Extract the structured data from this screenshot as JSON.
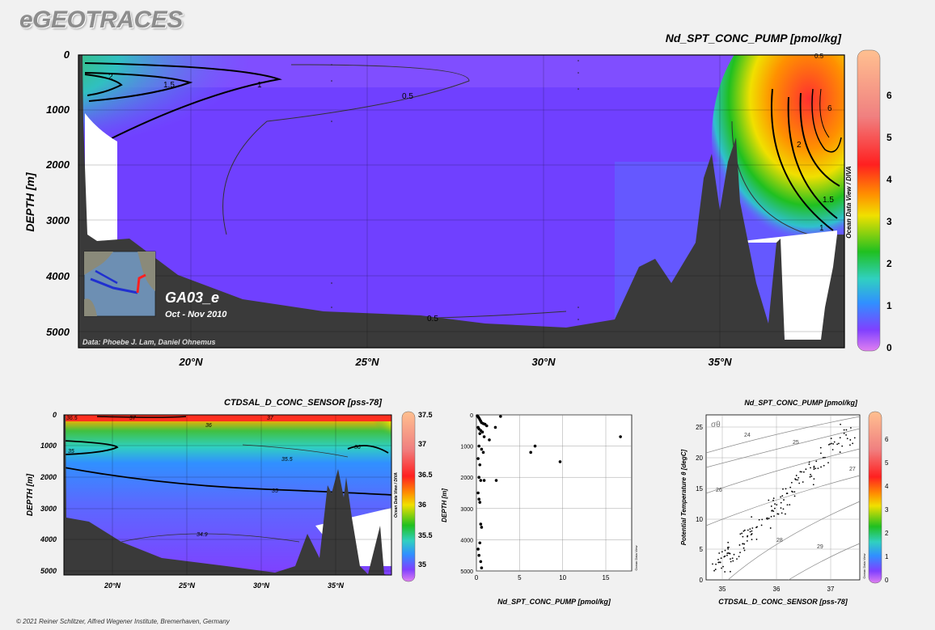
{
  "brand": "eGEOTRACES",
  "credit": "© 2021 Reiner Schlitzer, Alfred Wegener Institute, Bremerhaven, Germany",
  "colors": {
    "land": "#3a3a3a",
    "background": "#f1f1f1",
    "nd_scale": [
      "#e080f0",
      "#8040ff",
      "#3090ff",
      "#30d0c0",
      "#20c020",
      "#f0e000",
      "#ff9000",
      "#ff2020",
      "#f08080",
      "#ffc090"
    ],
    "sal_scale": [
      "#e080f0",
      "#8040ff",
      "#3090ff",
      "#30d0c0",
      "#20c020",
      "#f0e000",
      "#ff9000",
      "#ff2020",
      "#f08080",
      "#ffc090"
    ]
  },
  "main_section": {
    "title": "Nd_SPT_CONC_PUMP [pmol/kg]",
    "ylabel": "DEPTH [m]",
    "yticks": [
      "0",
      "1000",
      "2000",
      "3000",
      "4000",
      "5000"
    ],
    "xticks": [
      "20°N",
      "25°N",
      "30°N",
      "35°N"
    ],
    "colorbar_ticks": [
      "0",
      "1",
      "2",
      "3",
      "4",
      "5",
      "6"
    ],
    "side_label": "Ocean Data View / DIVA",
    "contour_labels": [
      "2",
      "1.5",
      "1",
      "0.5",
      "0.5",
      "2",
      "1.5",
      "1",
      "6",
      "0.5"
    ],
    "cruise": "GA03_e",
    "dates": "Oct - Nov 2010",
    "data_credit": "Data: Phoebe J. Lam, Daniel Ohnemus"
  },
  "sal_section": {
    "title": "CTDSAL_D_CONC_SENSOR [pss-78]",
    "ylabel": "DEPTH [m]",
    "yticks": [
      "0",
      "1000",
      "2000",
      "3000",
      "4000",
      "5000"
    ],
    "xticks": [
      "20°N",
      "25°N",
      "30°N",
      "35°N"
    ],
    "colorbar_ticks": [
      "35",
      "35.5",
      "36",
      "36.5",
      "37",
      "37.5"
    ],
    "side_label": "Ocean Data View / DIVA",
    "contour_labels": [
      "36.5",
      "37",
      "37",
      "36",
      "35",
      "35.5",
      "36",
      "35",
      "34.9"
    ]
  },
  "chart_data": [
    {
      "type": "heatmap",
      "title": "Nd_SPT_CONC_PUMP [pmol/kg]",
      "xlabel": "",
      "ylabel": "DEPTH [m]",
      "x_range_degN": [
        17,
        38.6
      ],
      "y_range_m": [
        0,
        5300
      ],
      "colorbar_range": [
        0,
        7
      ],
      "contour_levels": [
        0.5,
        1,
        1.5,
        2,
        6
      ]
    },
    {
      "type": "heatmap",
      "title": "CTDSAL_D_CONC_SENSOR [pss-78]",
      "xlabel": "",
      "ylabel": "DEPTH [m]",
      "x_range_degN": [
        17,
        38.6
      ],
      "y_range_m": [
        0,
        5300
      ],
      "colorbar_range": [
        34.7,
        37.5
      ],
      "contour_levels": [
        34.9,
        35,
        35.5,
        36,
        36.5,
        37
      ]
    },
    {
      "type": "scatter",
      "title": "",
      "xlabel": "Nd_SPT_CONC_PUMP [pmol/kg]",
      "ylabel": "DEPTH [m]",
      "xlim": [
        0,
        18
      ],
      "ylim": [
        5000,
        0
      ],
      "xticks": [
        "0",
        "5",
        "10",
        "15"
      ],
      "yticks": [
        "0",
        "1000",
        "2000",
        "3000",
        "4000",
        "5000"
      ],
      "side_label": "Ocean Data View",
      "x": [
        0.1,
        0.2,
        0.3,
        0.4,
        0.5,
        0.6,
        0.8,
        1.0,
        1.2,
        0.2,
        0.3,
        0.5,
        0.7,
        0.4,
        0.9,
        1.5,
        2.2,
        2.8,
        6.3,
        6.8,
        9.7,
        16.7,
        0.3,
        0.6,
        0.8,
        0.2,
        0.4,
        0.3,
        2.3,
        0.5,
        0.9,
        0.2,
        0.3,
        0.4,
        0.5,
        0.6,
        0.4,
        0.2,
        0.3,
        0.5,
        0.6
      ],
      "y": [
        30,
        60,
        100,
        150,
        200,
        250,
        280,
        300,
        350,
        400,
        450,
        500,
        550,
        600,
        700,
        800,
        400,
        50,
        1200,
        1000,
        1500,
        700,
        1000,
        1100,
        1200,
        1400,
        1600,
        2000,
        2100,
        2100,
        2100,
        2500,
        2700,
        2800,
        3500,
        3600,
        4100,
        4300,
        4500,
        4700,
        4900
      ]
    },
    {
      "type": "scatter",
      "title": "Nd_SPT_CONC_PUMP [pmol/kg]",
      "xlabel": "CTDSAL_D_CONC_SENSOR [pss-78]",
      "ylabel": "Potential Temperature θ [degC]",
      "xlim": [
        34.7,
        37.6
      ],
      "ylim": [
        0,
        27
      ],
      "xticks": [
        "35",
        "36",
        "37"
      ],
      "yticks": [
        "0",
        "5",
        "10",
        "15",
        "20",
        "25"
      ],
      "colorbar_ticks": [
        "0",
        "1",
        "2",
        "3",
        "4",
        "5",
        "6"
      ],
      "side_label": "Ocean Data View",
      "sigma_label": "σθ",
      "isopycnal_labels": [
        "24",
        "25",
        "26",
        "27",
        "28",
        "29"
      ]
    }
  ]
}
